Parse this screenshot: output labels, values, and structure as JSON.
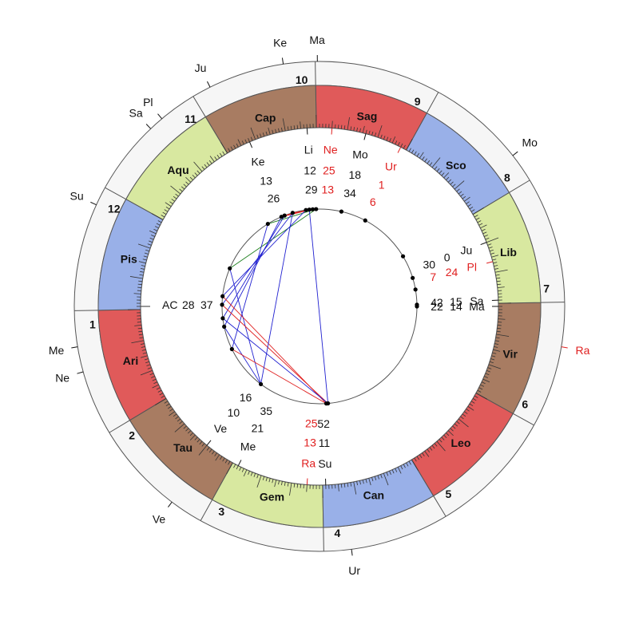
{
  "colors": {
    "fire": "#e05a5a",
    "earth": "#a87c62",
    "air": "#d8e8a0",
    "water": "#99b0e8",
    "outer_band": "#f6f6f6",
    "line": "#555555",
    "red": "#e02020",
    "blue": "#2020d0",
    "green": "#208020",
    "text": "#111111"
  },
  "wheel": {
    "ascendant_label": "AC",
    "ascendant_deg": "28",
    "ascendant_min": "37",
    "signs": [
      {
        "label": "Ari",
        "element": "fire"
      },
      {
        "label": "Tau",
        "element": "earth"
      },
      {
        "label": "Gem",
        "element": "air"
      },
      {
        "label": "Can",
        "element": "water"
      },
      {
        "label": "Leo",
        "element": "fire"
      },
      {
        "label": "Vir",
        "element": "earth"
      },
      {
        "label": "Lib",
        "element": "air"
      },
      {
        "label": "Sco",
        "element": "water"
      },
      {
        "label": "Sag",
        "element": "fire"
      },
      {
        "label": "Cap",
        "element": "earth"
      },
      {
        "label": "Aqu",
        "element": "air"
      },
      {
        "label": "Pis",
        "element": "water"
      }
    ],
    "houses": [
      "1",
      "2",
      "3",
      "4",
      "5",
      "6",
      "7",
      "8",
      "9",
      "10",
      "11",
      "12"
    ]
  },
  "outer_planets": [
    {
      "label": "Ma",
      "lon": 269.5,
      "color": "text"
    },
    {
      "label": "Ke",
      "lon": 277.5,
      "color": "text"
    },
    {
      "label": "Ju",
      "lon": 295.5,
      "color": "text"
    },
    {
      "label": "Pl",
      "lon": 309.0,
      "color": "text"
    },
    {
      "label": "Sa",
      "lon": 312.5,
      "color": "text"
    },
    {
      "label": "Mo",
      "lon": 217.0,
      "color": "text"
    },
    {
      "label": "Su",
      "lon": 334.5,
      "color": "text"
    },
    {
      "label": "Me",
      "lon": 8.5,
      "color": "text"
    },
    {
      "label": "Ne",
      "lon": 14.5,
      "color": "text"
    },
    {
      "label": "Ve",
      "lon": 52.0,
      "color": "text"
    },
    {
      "label": "Ur",
      "lon": 96.5,
      "color": "text"
    },
    {
      "label": "Ra",
      "lon": 169.5,
      "color": "red"
    }
  ],
  "inner_planets": [
    {
      "label": "Li",
      "deg": "12",
      "min": "29",
      "lon": 273.0,
      "color": "text"
    },
    {
      "label": "Ke",
      "deg": "13",
      "min": "26",
      "lon": 292.0,
      "color": "text"
    },
    {
      "label": "Ne",
      "deg": "25",
      "min": "13",
      "lon": 265.0,
      "color": "red"
    },
    {
      "label": "Mo",
      "deg": "18",
      "min": "34",
      "lon": 254.0,
      "color": "text"
    },
    {
      "label": "Ur",
      "deg": "1",
      "min": "6",
      "lon": 242.0,
      "color": "red"
    },
    {
      "label": "Ju",
      "deg": "0",
      "min": "30",
      "lon": 200.0,
      "color": "text"
    },
    {
      "label": "Pl",
      "deg": "24",
      "min": "7",
      "lon": 193.5,
      "color": "red"
    },
    {
      "label": "Sa",
      "deg": "15",
      "min": "42",
      "lon": 181.0,
      "color": "text"
    },
    {
      "label": "Ma",
      "deg": "14",
      "min": "22",
      "lon": 179.0,
      "color": "text"
    },
    {
      "label": "Su",
      "deg": "11",
      "min": "52",
      "lon": 91.0,
      "color": "text"
    },
    {
      "label": "Ra",
      "deg": "13",
      "min": "25",
      "lon": 85.0,
      "color": "red"
    },
    {
      "label": "Me",
      "deg": "21",
      "min": "35",
      "lon": 62.0,
      "color": "text"
    },
    {
      "label": "Ve",
      "deg": "10",
      "min": "16",
      "lon": 50.0,
      "color": "text"
    }
  ],
  "aspects": [
    {
      "from": 0,
      "to": 7,
      "color": "green"
    },
    {
      "from": 0,
      "to": 8,
      "color": "green"
    },
    {
      "from": 0,
      "to": 4,
      "color": "red"
    },
    {
      "from": 1,
      "to": 6,
      "color": "red"
    },
    {
      "from": 2,
      "to": 5,
      "color": "red"
    },
    {
      "from": 3,
      "to": 9,
      "color": "blue"
    },
    {
      "from": 4,
      "to": 10,
      "color": "blue"
    },
    {
      "from": 5,
      "to": 11,
      "color": "blue"
    },
    {
      "from": 6,
      "to": 12,
      "color": "blue"
    },
    {
      "from": 7,
      "to": 13,
      "color": "blue"
    },
    {
      "from": 8,
      "to": 14,
      "color": "blue"
    },
    {
      "from": 9,
      "to": 15,
      "color": "red"
    },
    {
      "from": 10,
      "to": 16,
      "color": "red"
    },
    {
      "from": 11,
      "to": 16,
      "color": "blue"
    },
    {
      "from": 12,
      "to": 14,
      "color": "blue"
    },
    {
      "from": 13,
      "to": 15,
      "color": "red"
    },
    {
      "from": 2,
      "to": 16,
      "color": "blue"
    },
    {
      "from": 4,
      "to": 14,
      "color": "blue"
    }
  ]
}
